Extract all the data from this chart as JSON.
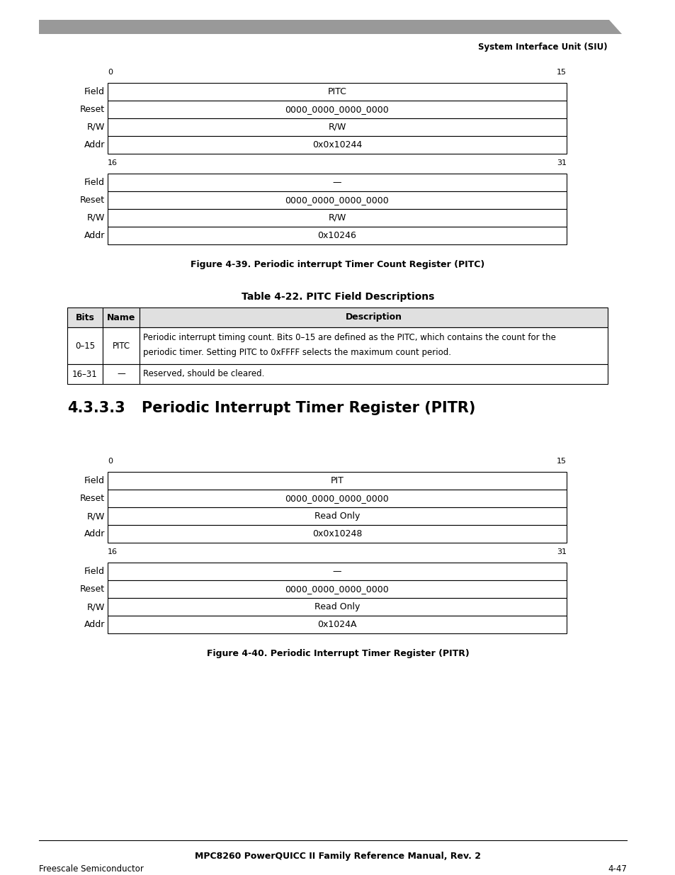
{
  "page_bg": "#ffffff",
  "header_bar_color": "#999999",
  "header_text": "System Interface Unit (SIU)",
  "section_heading_num": "4.3.3.3",
  "section_heading_title": "Periodic Interrupt Timer Register (PITR)",
  "fig1_caption": "Figure 4-39. Periodic interrupt Timer Count Register (PITC)",
  "fig2_caption": "Figure 4-40. Periodic Interrupt Timer Register (PITR)",
  "footer_center": "MPC8260 PowerQUICC II Family Reference Manual, Rev. 2",
  "footer_left": "Freescale Semiconductor",
  "footer_right": "4-47",
  "table_title": "Table 4-22. PITC Field Descriptions",
  "table_header": [
    "Bits",
    "Name",
    "Description"
  ],
  "table_rows": [
    [
      "0–15",
      "PITC",
      "Periodic interrupt timing count. Bits 0–15 are defined as the PITC, which contains the count for the\nperiodic timer. Setting PITC to 0xFFFF selects the maximum count period."
    ],
    [
      "16–31",
      "—",
      "Reserved, should be cleared."
    ]
  ],
  "reg1_top_bit_left": "0",
  "reg1_top_bit_right": "15",
  "reg1_rows": [
    {
      "label": "Field",
      "value": "PITC"
    },
    {
      "label": "Reset",
      "value": "0000_0000_0000_0000"
    },
    {
      "label": "R/W",
      "value": "R/W"
    },
    {
      "label": "Addr",
      "value": "0x0x10244"
    }
  ],
  "reg1_bot_bit_left": "16",
  "reg1_bot_bit_right": "31",
  "reg1_bot_rows": [
    {
      "label": "Field",
      "value": "—"
    },
    {
      "label": "Reset",
      "value": "0000_0000_0000_0000"
    },
    {
      "label": "R/W",
      "value": "R/W"
    },
    {
      "label": "Addr",
      "value": "0x10246"
    }
  ],
  "reg2_top_bit_left": "0",
  "reg2_top_bit_right": "15",
  "reg2_rows": [
    {
      "label": "Field",
      "value": "PIT"
    },
    {
      "label": "Reset",
      "value": "0000_0000_0000_0000"
    },
    {
      "label": "R/W",
      "value": "Read Only"
    },
    {
      "label": "Addr",
      "value": "0x0x10248"
    }
  ],
  "reg2_bot_bit_left": "16",
  "reg2_bot_bit_right": "31",
  "reg2_bot_rows": [
    {
      "label": "Field",
      "value": "—"
    },
    {
      "label": "Reset",
      "value": "0000_0000_0000_0000"
    },
    {
      "label": "R/W",
      "value": "Read Only"
    },
    {
      "label": "Addr",
      "value": "0x1024A"
    }
  ]
}
